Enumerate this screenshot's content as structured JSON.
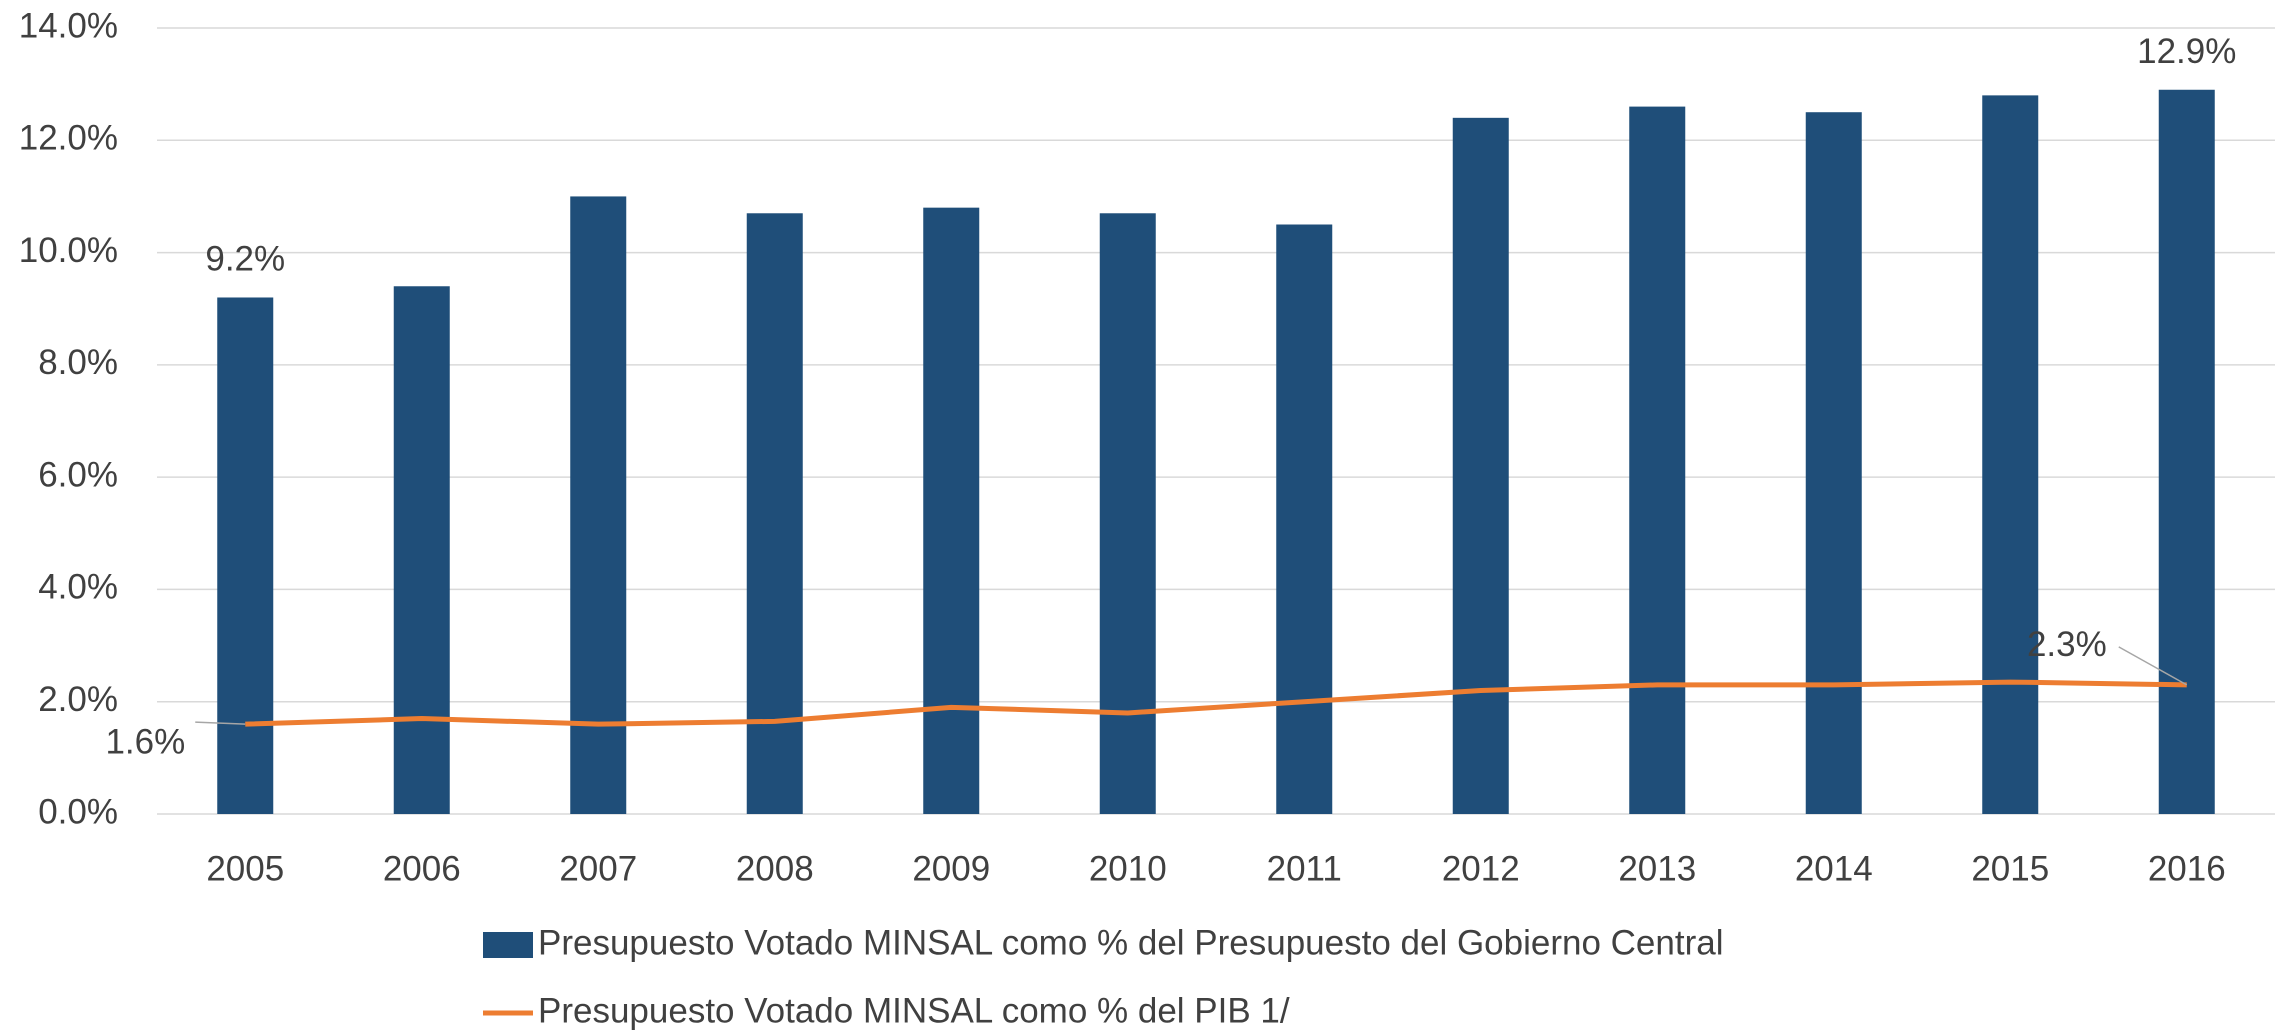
{
  "chart_data": {
    "type": "bar_line",
    "categories": [
      "2005",
      "2006",
      "2007",
      "2008",
      "2009",
      "2010",
      "2011",
      "2012",
      "2013",
      "2014",
      "2015",
      "2016"
    ],
    "series": [
      {
        "name": "Presupuesto Votado MINSAL como % del Presupuesto del Gobierno Central",
        "type": "bar",
        "color": "#1f4e79",
        "values": [
          9.2,
          9.4,
          11.0,
          10.7,
          10.8,
          10.7,
          10.5,
          12.4,
          12.6,
          12.5,
          12.8,
          12.9
        ],
        "value_labels": [
          "9.2%",
          null,
          null,
          null,
          null,
          null,
          null,
          null,
          null,
          null,
          null,
          "12.9%"
        ]
      },
      {
        "name": "Presupuesto Votado MINSAL como % del PIB  1/",
        "type": "line",
        "color": "#ed7d31",
        "values": [
          1.6,
          1.7,
          1.6,
          1.65,
          1.9,
          1.8,
          2.0,
          2.2,
          2.3,
          2.3,
          2.35,
          2.3
        ],
        "value_labels": [
          "1.6%",
          null,
          null,
          null,
          null,
          null,
          null,
          null,
          null,
          null,
          null,
          "2.3%"
        ]
      }
    ],
    "ylim": [
      0,
      14
    ],
    "yticks": [
      {
        "value": 0,
        "label": "0.0%"
      },
      {
        "value": 2,
        "label": "2.0%"
      },
      {
        "value": 4,
        "label": "4.0%"
      },
      {
        "value": 6,
        "label": "6.0%"
      },
      {
        "value": 8,
        "label": "8.0%"
      },
      {
        "value": 10,
        "label": "10.0%"
      },
      {
        "value": 12,
        "label": "12.0%"
      },
      {
        "value": 14,
        "label": "14.0%"
      }
    ],
    "grid": true,
    "legend": "bottom"
  }
}
